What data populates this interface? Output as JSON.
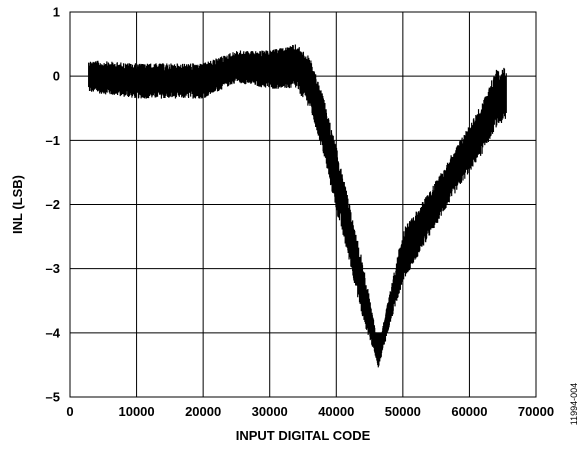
{
  "chart_data": {
    "type": "line",
    "title": "",
    "xlabel": "INPUT DIGITAL CODE",
    "ylabel": "INL (LSB)",
    "xlim": [
      0,
      70000
    ],
    "ylim": [
      -5,
      1
    ],
    "x_ticks": [
      0,
      10000,
      20000,
      30000,
      40000,
      50000,
      60000,
      70000
    ],
    "y_ticks": [
      1,
      0,
      -1,
      -2,
      -3,
      -4,
      -5
    ],
    "x_tick_labels": [
      "0",
      "10000",
      "20000",
      "30000",
      "40000",
      "50000",
      "60000",
      "70000"
    ],
    "y_tick_labels": [
      "1",
      "0",
      "–1",
      "–2",
      "–3",
      "–4",
      "–5"
    ],
    "grid": true,
    "legend": "none",
    "series": [
      {
        "color": "#000000",
        "x_range": [
          2800,
          65535
        ],
        "envelope": {
          "x": [
            2800,
            10000,
            20000,
            25000,
            30000,
            34000,
            36000,
            38000,
            40000,
            42000,
            44000,
            46000,
            46300,
            48000,
            50000,
            54000,
            58000,
            62000,
            64000,
            65535
          ],
          "upper": [
            0.25,
            0.2,
            0.2,
            0.4,
            0.4,
            0.5,
            0.3,
            -0.3,
            -1.1,
            -2.0,
            -2.9,
            -4.0,
            -4.2,
            -3.4,
            -2.4,
            -1.8,
            -1.1,
            -0.4,
            0.1,
            0.15
          ],
          "lower": [
            -0.25,
            -0.35,
            -0.35,
            -0.1,
            -0.2,
            -0.2,
            -0.5,
            -1.2,
            -2.1,
            -2.9,
            -3.8,
            -4.4,
            -4.55,
            -3.9,
            -3.2,
            -2.5,
            -1.8,
            -1.2,
            -0.8,
            -0.7
          ]
        }
      }
    ],
    "figure_id": "11994-004"
  }
}
